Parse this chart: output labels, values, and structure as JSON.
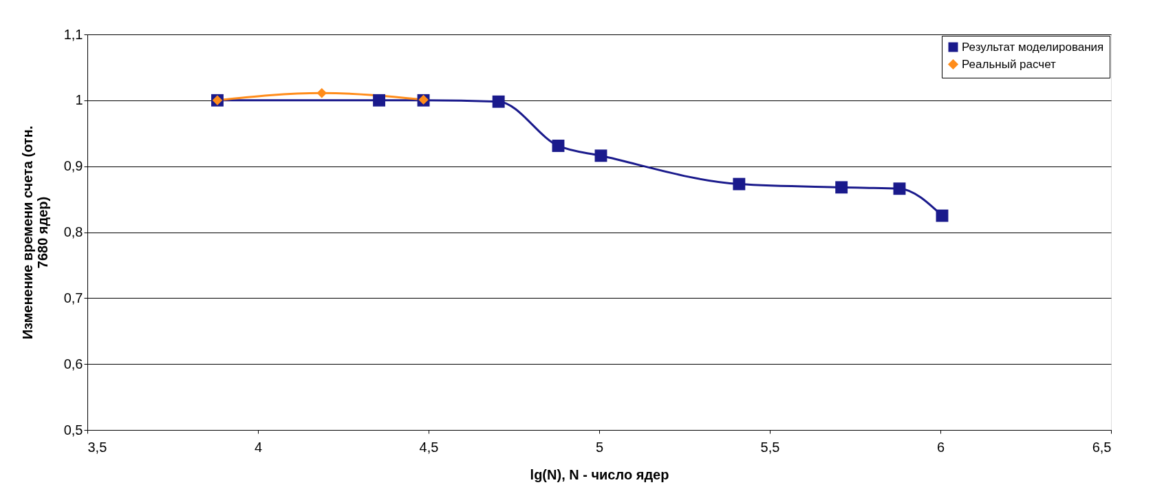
{
  "chart_data": {
    "type": "line",
    "xlabel": "lg(N), N - число ядер",
    "ylabel": "Изменение времени счета (отн.\n7680 ядер)",
    "xlim": [
      3.5,
      6.5
    ],
    "xticks": [
      {
        "value": 3.5,
        "label": "3,5"
      },
      4,
      {
        "value": 4.5,
        "label": "4,5"
      },
      5,
      {
        "value": 5.5,
        "label": "5,5"
      },
      6,
      {
        "value": 6.5,
        "label": "6,5"
      }
    ],
    "ylim": [
      0.5,
      1.1
    ],
    "yticks": [
      {
        "value": 0.5,
        "label": "0,5"
      },
      {
        "value": 0.6,
        "label": "0,6"
      },
      {
        "value": 0.7,
        "label": "0,7"
      },
      {
        "value": 0.8,
        "label": "0,8"
      },
      {
        "value": 0.9,
        "label": "0,9"
      },
      1,
      {
        "value": 1.1,
        "label": "1,1"
      }
    ],
    "grid": "y",
    "legend": "top right",
    "series": [
      {
        "name": "Результат моделирования",
        "color": "#1a1a8c",
        "marker": "square",
        "x": [
          3.881,
          4.355,
          4.485,
          4.705,
          4.88,
          5.005,
          5.41,
          5.71,
          5.88,
          6.005
        ],
        "values": [
          1.0,
          1.0,
          1.0,
          0.998,
          0.931,
          0.916,
          0.873,
          0.868,
          0.866,
          0.825
        ]
      },
      {
        "name": "Реальный расчет",
        "color": "#ff8c1a",
        "marker": "diamond",
        "x": [
          3.881,
          4.187,
          4.485
        ],
        "values": [
          1.0,
          1.011,
          1.001
        ]
      }
    ]
  }
}
